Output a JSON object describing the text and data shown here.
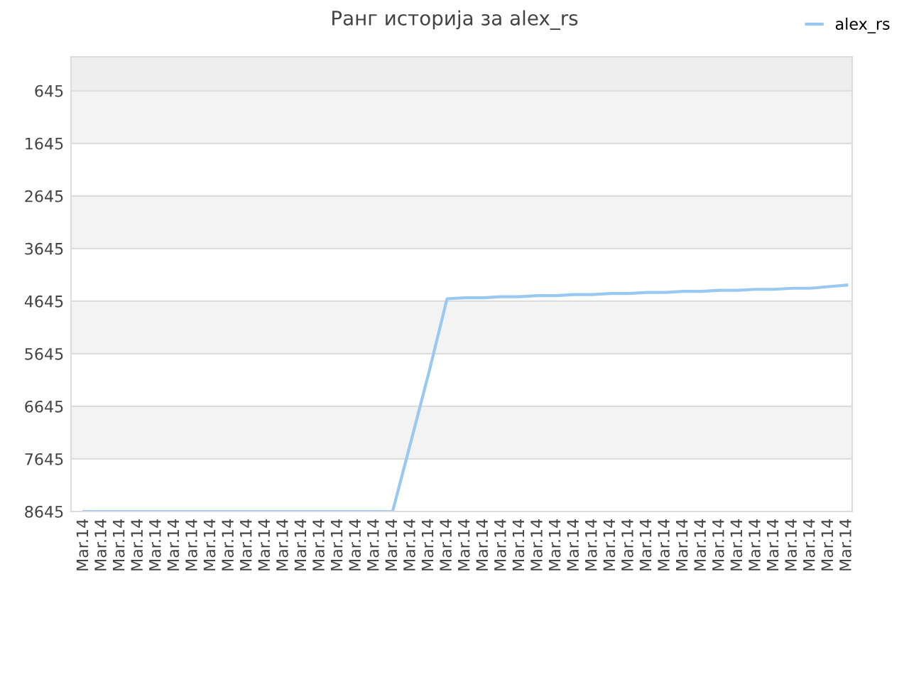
{
  "chart_data": {
    "type": "line",
    "title": "Ранг историја за alex_rs",
    "categories": [
      "Mar.14",
      "Mar.14",
      "Mar.14",
      "Mar.14",
      "Mar.14",
      "Mar.14",
      "Mar.14",
      "Mar.14",
      "Mar.14",
      "Mar.14",
      "Mar.14",
      "Mar.14",
      "Mar.14",
      "Mar.14",
      "Mar.14",
      "Mar.14",
      "Mar.14",
      "Mar.14",
      "Mar.14",
      "Mar.14",
      "Mar.14",
      "Mar.14",
      "Mar.14",
      "Mar.14",
      "Mar.14",
      "Mar.14",
      "Mar.14",
      "Mar.14",
      "Mar.14",
      "Mar.14",
      "Mar.14",
      "Mar.14",
      "Mar.14",
      "Mar.14",
      "Mar.14",
      "Mar.14",
      "Mar.14",
      "Mar.14",
      "Mar.14",
      "Mar.14",
      "Mar.14",
      "Mar.14",
      "Mar.14"
    ],
    "series": [
      {
        "name": "alex_rs",
        "color": "#99c9f2",
        "values": [
          8645,
          8645,
          8645,
          8645,
          8645,
          8645,
          8645,
          8645,
          8645,
          8645,
          8645,
          8645,
          8645,
          8645,
          8645,
          8645,
          8645,
          8645,
          7330,
          6000,
          4600,
          4580,
          4580,
          4560,
          4560,
          4540,
          4540,
          4520,
          4520,
          4500,
          4500,
          4480,
          4480,
          4460,
          4460,
          4440,
          4440,
          4420,
          4420,
          4400,
          4400,
          4370,
          4340
        ]
      }
    ],
    "ylim": [
      8645,
      0
    ],
    "yticks": [
      645,
      1645,
      2645,
      3645,
      4645,
      5645,
      6645,
      7645,
      8645
    ],
    "grid": "y",
    "legend": "top right",
    "marker": "none",
    "line_style": "solid"
  }
}
